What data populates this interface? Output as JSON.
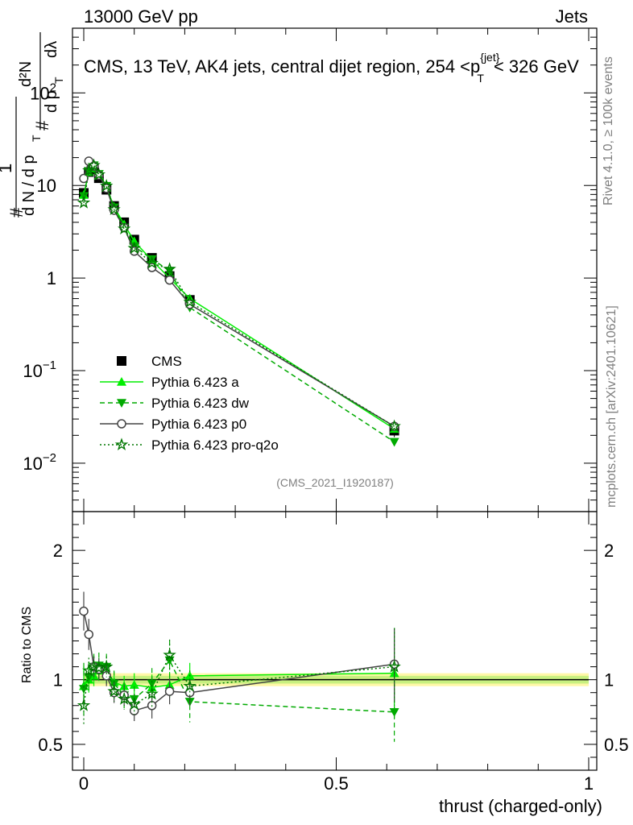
{
  "header": {
    "energy_label": "13000 GeV pp",
    "category_label": "Jets"
  },
  "side_labels": {
    "rivet": "Rivet 4.1.0, ≥ 100k events",
    "mcplots": "mcplots.cern.ch [arXiv:2401.10621]"
  },
  "chart_data": [
    {
      "type": "scatter",
      "panel": "main",
      "title": "CMS, 13 TeV, AK4 jets, central dijet region, 254 <p_T^{jet}< 326 GeV",
      "title_parts": {
        "pre": "CMS, 13 TeV, AK4 jets, central dijet region, 254 <",
        "p": "p",
        "sub": "T",
        "sup": "{jet}",
        "post": "< 326 GeV"
      },
      "ylabel_parts": {
        "hash": "#",
        "one": "1",
        "dN": "d N / d p",
        "T": "T",
        "d2N": "d²N",
        "dpdl": "d p",
        "dl": "dλ"
      },
      "yscale": "log",
      "ylim": [
        0.003,
        500
      ],
      "xlim": [
        -0.02,
        1.0
      ],
      "y_ticks": [
        {
          "value": 0.01,
          "base": "10",
          "exp": "−2"
        },
        {
          "value": 0.1,
          "base": "10",
          "exp": "−1"
        },
        {
          "value": 1,
          "base": "1",
          "exp": ""
        },
        {
          "value": 10,
          "base": "10",
          "exp": ""
        },
        {
          "value": 100,
          "base": "10",
          "exp": "2"
        }
      ],
      "watermark": "(CMS_2021_I1920187)",
      "legend_position": "bottom-left",
      "x": [
        0.0,
        0.01,
        0.02,
        0.03,
        0.045,
        0.06,
        0.08,
        0.1,
        0.135,
        0.17,
        0.21,
        0.615
      ],
      "series": [
        {
          "name": "CMS",
          "style": "data",
          "color": "#000000",
          "values": [
            8.3,
            14.0,
            15.0,
            12.0,
            9.0,
            6.0,
            4.0,
            2.6,
            1.65,
            1.05,
            0.58,
            0.0225
          ],
          "err": [
            0.12,
            0.1,
            0.1,
            0.1,
            0.1,
            0.1,
            0.1,
            0.1,
            0.1,
            0.1,
            0.12,
            0.15
          ]
        },
        {
          "name": "Pythia 6.423 a",
          "style": "solid",
          "color": "#00ee00",
          "values": [
            7.9,
            14.0,
            15.4,
            12.8,
            9.5,
            5.9,
            3.8,
            2.5,
            1.55,
            1.0,
            0.6,
            0.0235
          ]
        },
        {
          "name": "Pythia 6.423 dw",
          "style": "dashed",
          "color": "#00aa00",
          "values": [
            7.7,
            14.3,
            16.5,
            13.3,
            9.9,
            5.8,
            3.5,
            2.2,
            1.6,
            1.2,
            0.48,
            0.017
          ]
        },
        {
          "name": "Pythia 6.423 p0",
          "style": "solid",
          "color": "#444444",
          "values": [
            11.9,
            18.3,
            16.2,
            12.9,
            9.3,
            5.4,
            3.5,
            1.95,
            1.3,
            0.95,
            0.52,
            0.025
          ]
        },
        {
          "name": "Pythia 6.423 pro-q2o",
          "style": "dotted",
          "color": "#007700",
          "values": [
            6.5,
            14.5,
            16.5,
            13.1,
            9.9,
            5.5,
            3.4,
            2.1,
            1.45,
            1.25,
            0.55,
            0.025
          ]
        }
      ]
    },
    {
      "type": "scatter",
      "panel": "ratio",
      "ylabel": "Ratio to CMS",
      "xlabel": "thrust (charged-only)",
      "ylim": [
        0.3,
        2.3
      ],
      "xlim": [
        -0.02,
        1.0
      ],
      "y_ticks": [
        0.5,
        1,
        2
      ],
      "y_tick_labels": [
        "0.5",
        "1",
        "2"
      ],
      "x_ticks": [
        0,
        0.5,
        1
      ],
      "x_tick_labels": [
        "0",
        "0.5",
        "1"
      ],
      "band": {
        "inner": [
          0.97,
          1.03
        ],
        "outer": [
          0.95,
          1.05
        ],
        "x_range": [
          0.0,
          1.0
        ]
      },
      "x": [
        0.0,
        0.01,
        0.02,
        0.03,
        0.045,
        0.06,
        0.08,
        0.1,
        0.135,
        0.17,
        0.21,
        0.615
      ],
      "series": [
        {
          "name": "Pythia 6.423 a",
          "values": [
            0.95,
            1.0,
            1.03,
            1.07,
            1.05,
            0.98,
            0.95,
            0.96,
            0.94,
            0.96,
            1.03,
            1.05
          ],
          "err": [
            0.15,
            0.1,
            0.08,
            0.08,
            0.08,
            0.08,
            0.08,
            0.09,
            0.1,
            0.1,
            0.1,
            0.35
          ]
        },
        {
          "name": "Pythia 6.423 dw",
          "values": [
            0.93,
            1.02,
            1.1,
            1.11,
            1.1,
            0.97,
            0.88,
            0.85,
            0.97,
            1.15,
            0.83,
            0.75
          ],
          "err": [
            0.2,
            0.12,
            0.1,
            0.1,
            0.1,
            0.1,
            0.1,
            0.1,
            0.12,
            0.15,
            0.16,
            0.23
          ]
        },
        {
          "name": "Pythia 6.423 p0",
          "values": [
            1.53,
            1.35,
            1.1,
            1.08,
            1.03,
            0.9,
            0.88,
            0.76,
            0.8,
            0.91,
            0.9,
            1.12
          ],
          "err": [
            0.15,
            0.12,
            0.08,
            0.08,
            0.08,
            0.08,
            0.08,
            0.08,
            0.1,
            0.1,
            0.1,
            0.28
          ]
        },
        {
          "name": "Pythia 6.423 pro-q2o",
          "values": [
            0.8,
            1.07,
            1.1,
            1.09,
            1.1,
            0.91,
            0.85,
            0.81,
            0.89,
            1.19,
            0.95,
            1.1
          ],
          "err": [
            0.15,
            0.1,
            0.08,
            0.08,
            0.08,
            0.08,
            0.08,
            0.08,
            0.1,
            0.12,
            0.12,
            0.3
          ]
        }
      ]
    }
  ]
}
